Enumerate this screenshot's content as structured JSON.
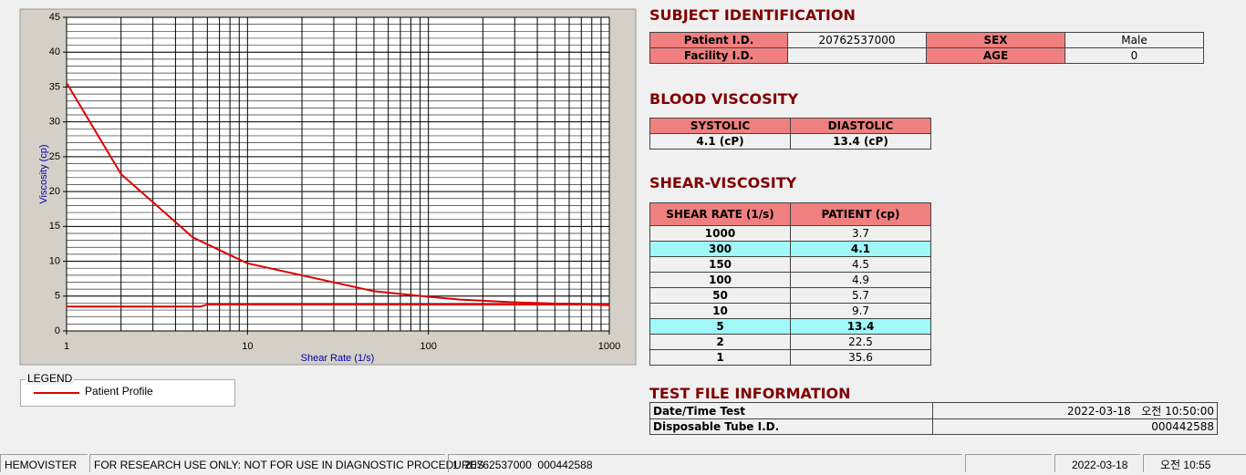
{
  "chart_data": {
    "type": "line",
    "xlabel": "Shear Rate (1/s)",
    "ylabel": "Viscosity (cp)",
    "xlog": true,
    "xlim": [
      1,
      1000
    ],
    "xticks": [
      1,
      10,
      100,
      1000
    ],
    "ylim": [
      0,
      45
    ],
    "yticks": [
      0,
      5,
      10,
      15,
      20,
      25,
      30,
      35,
      40,
      45
    ],
    "grid": true,
    "minor_grid": true,
    "legend_title": "LEGEND",
    "series": [
      {
        "name": "Patient Profile",
        "color": "#dd0000",
        "x": [
          1,
          2,
          5,
          10,
          50,
          100,
          150,
          300,
          1000
        ],
        "values": [
          35.6,
          22.5,
          13.4,
          9.7,
          5.7,
          4.9,
          4.5,
          4.1,
          3.7
        ]
      },
      {
        "color": "#dd0000",
        "x": [
          1,
          5.5,
          6,
          1000
        ],
        "values": [
          3.5,
          3.5,
          3.8,
          3.8
        ]
      }
    ]
  },
  "subject": {
    "title": "SUBJECT IDENTIFICATION",
    "rows": [
      [
        "Patient I.D.",
        "20762537000",
        "SEX",
        "Male"
      ],
      [
        "Facility I.D.",
        null,
        "AGE",
        0
      ]
    ]
  },
  "blood": {
    "title": "BLOOD VISCOSITY",
    "headers": [
      "SYSTOLIC",
      "DIASTOLIC"
    ],
    "values": [
      "4.1 (cP)",
      "13.4 (cP)"
    ]
  },
  "shear": {
    "title": "SHEAR-VISCOSITY",
    "headers": [
      "SHEAR RATE (1/s)",
      "PATIENT (cp)"
    ],
    "rows": [
      [
        1000,
        3.7
      ],
      [
        300,
        4.1
      ],
      [
        150,
        4.5
      ],
      [
        100,
        4.9
      ],
      [
        50,
        5.7
      ],
      [
        10,
        9.7
      ],
      [
        5,
        13.4
      ],
      [
        2,
        22.5
      ],
      [
        1,
        35.6
      ]
    ],
    "highlighted_rows": [
      1,
      6
    ]
  },
  "testfile": {
    "title": "TEST FILE INFORMATION",
    "rows": [
      [
        "Date/Time Test",
        "2022-03-18   오전 10:50:00"
      ],
      [
        "Disposable Tube I.D.",
        "000442588"
      ]
    ]
  },
  "status": [
    "HEMOVISTER",
    "FOR RESEARCH USE ONLY: NOT FOR USE IN DIAGNOSTIC PROCEDURES",
    "1  20762537000  000442588",
    "2022-03-18",
    "오전 10:55"
  ]
}
